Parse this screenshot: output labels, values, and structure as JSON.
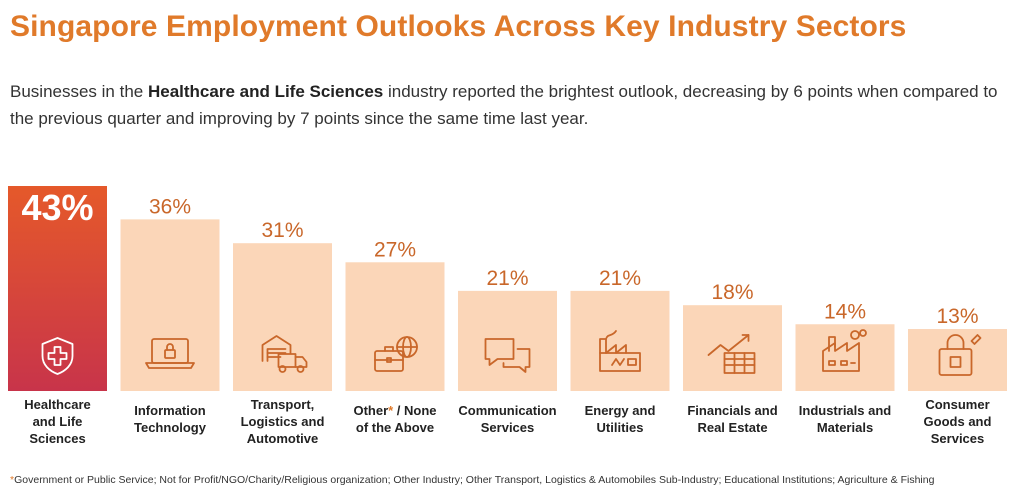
{
  "header": {
    "title": "Singapore Employment Outlooks Across Key Industry Sectors",
    "subtitle_pre": "Businesses in the ",
    "subtitle_bold": "Healthcare and Life Sciences",
    "subtitle_post": " industry reported the brightest outlook, decreasing by 6 points when compared to the previous quarter and improving by 7 points since the same time last year."
  },
  "colors": {
    "accent": "#e07a2a",
    "bar_fill": "#fbd6b8",
    "highlight_top": "#e5592a",
    "highlight_bottom": "#c8344a",
    "icon_stroke": "#c9672a"
  },
  "chart_data": {
    "type": "bar",
    "ylim": [
      0,
      43
    ],
    "categories": [
      {
        "label_lines": [
          "Healthcare",
          "and Life",
          "Sciences"
        ],
        "value": 43,
        "value_label": "43%",
        "highlight": true,
        "icon": "shield-medical-icon"
      },
      {
        "label_lines": [
          "Information",
          "Technology"
        ],
        "value": 36,
        "value_label": "36%",
        "highlight": false,
        "icon": "laptop-lock-icon"
      },
      {
        "label_lines": [
          "Transport,",
          "Logistics and",
          "Automotive"
        ],
        "value": 31,
        "value_label": "31%",
        "highlight": false,
        "icon": "warehouse-truck-icon"
      },
      {
        "label_lines": [
          "Other* / None",
          "of the Above"
        ],
        "value": 27,
        "value_label": "27%",
        "highlight": false,
        "icon": "briefcase-globe-icon"
      },
      {
        "label_lines": [
          "Communication",
          "Services"
        ],
        "value": 21,
        "value_label": "21%",
        "highlight": false,
        "icon": "chat-bubbles-icon"
      },
      {
        "label_lines": [
          "Energy and",
          "Utilities"
        ],
        "value": 21,
        "value_label": "21%",
        "highlight": false,
        "icon": "power-plant-icon"
      },
      {
        "label_lines": [
          "Financials and",
          "Real Estate"
        ],
        "value": 18,
        "value_label": "18%",
        "highlight": false,
        "icon": "growth-chart-icon"
      },
      {
        "label_lines": [
          "Industrials and",
          "Materials"
        ],
        "value": 14,
        "value_label": "14%",
        "highlight": false,
        "icon": "factory-icon"
      },
      {
        "label_lines": [
          "Consumer",
          "Goods and",
          "Services"
        ],
        "value": 13,
        "value_label": "13%",
        "highlight": false,
        "icon": "shopping-bag-icon"
      }
    ]
  },
  "footnote": {
    "star": "*",
    "text": "Government or Public Service; Not for Profit/NGO/Charity/Religious organization; Other Industry; Other Transport, Logistics & Automobiles Sub-Industry; Educational Institutions; Agriculture & Fishing"
  }
}
